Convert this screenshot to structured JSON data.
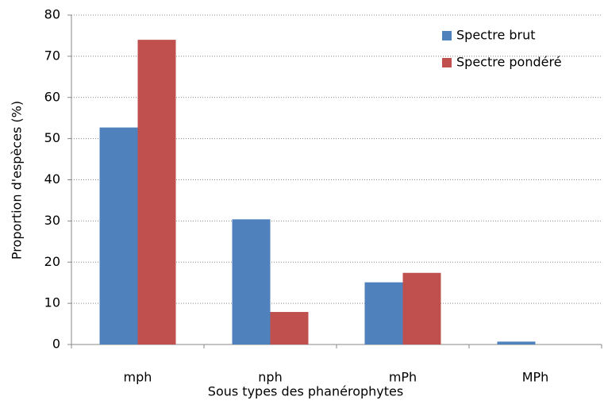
{
  "chart_data": {
    "type": "bar",
    "categories": [
      "mph",
      "nph",
      "mPh",
      "MPh"
    ],
    "series": [
      {
        "name": "Spectre brut",
        "color": "#4f81bd",
        "values": [
          52.7,
          30.4,
          15.1,
          0.7
        ]
      },
      {
        "name": "Spectre pondéré",
        "color": "#c0504d",
        "values": [
          74,
          7.9,
          17.4,
          0
        ]
      }
    ],
    "xlabel": "Sous types des phanérophytes",
    "ylabel": "Proportion d'espèces (%)",
    "ylim": [
      0,
      80
    ],
    "yticks": [
      0,
      10,
      20,
      30,
      40,
      50,
      60,
      70,
      80
    ],
    "grid": true,
    "legend": "upper right"
  }
}
